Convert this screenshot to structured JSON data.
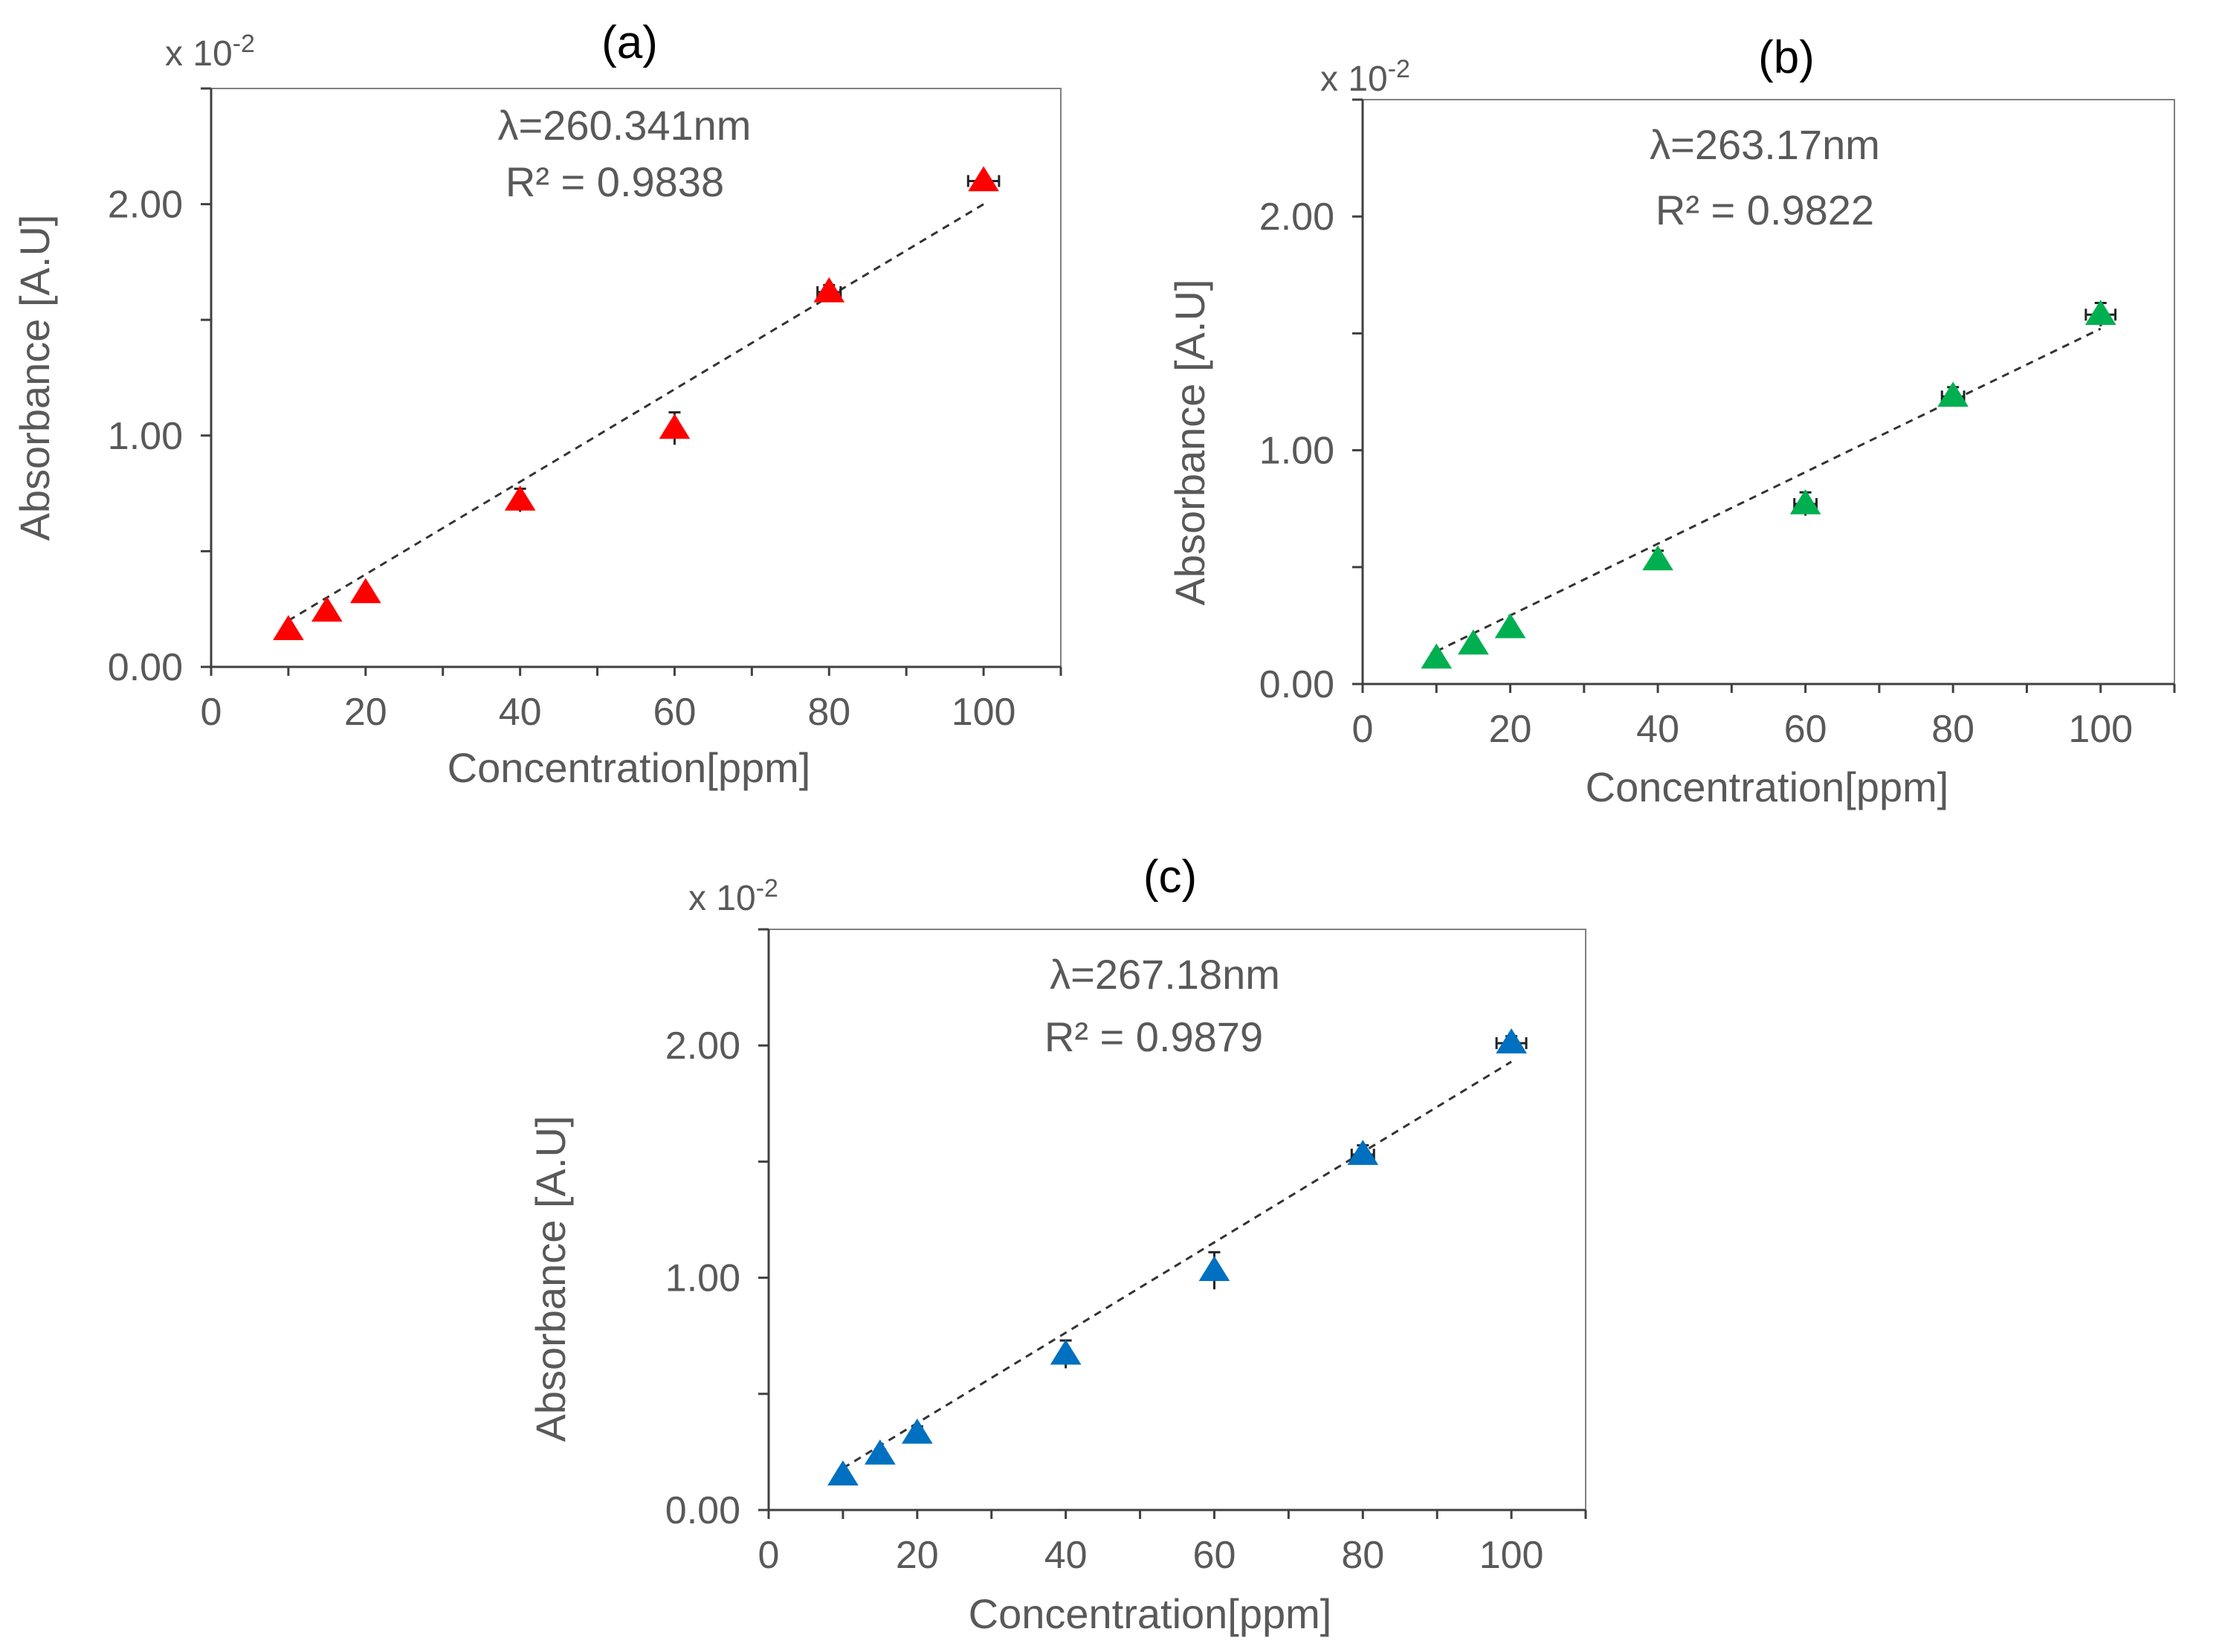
{
  "chart_data": [
    {
      "type": "scatter",
      "panel_label": "(a)",
      "multiplier_base": "x 10",
      "multiplier_exp": "-2",
      "annotation_lambda": "λ=260.341nm",
      "annotation_r2": "R² = 0.9838",
      "xlabel": "Concentration[ppm]",
      "ylabel": "Absorbance [A.U]",
      "xlim": [
        0,
        110
      ],
      "ylim": [
        0,
        2.5
      ],
      "xticks": [
        0,
        20,
        40,
        60,
        80,
        100
      ],
      "xtick_labels": [
        "0",
        "20",
        "40",
        "60",
        "80",
        "100"
      ],
      "yticks": [
        0,
        1,
        2
      ],
      "ytick_labels": [
        "0.00",
        "1.00",
        "2.00"
      ],
      "color": "#ff0000",
      "trendline": {
        "x": [
          10,
          100
        ],
        "y": [
          0.2,
          2.0
        ]
      },
      "series": [
        {
          "name": "Absorbance",
          "x": [
            10,
            15,
            20,
            40,
            60,
            80,
            100
          ],
          "y": [
            0.16,
            0.24,
            0.32,
            0.72,
            1.03,
            1.62,
            2.1
          ],
          "yerr": [
            0.02,
            0.02,
            0.02,
            0.05,
            0.07,
            0.03,
            0.02
          ],
          "xerr": [
            0,
            0,
            0,
            0,
            0,
            1.5,
            2
          ]
        }
      ]
    },
    {
      "type": "scatter",
      "panel_label": "(b)",
      "multiplier_base": "x 10",
      "multiplier_exp": "-2",
      "annotation_lambda": "λ=263.17nm",
      "annotation_r2": "R² = 0.9822",
      "xlabel": "Concentration[ppm]",
      "ylabel": "Absorbance [A.U]",
      "xlim": [
        0,
        110
      ],
      "ylim": [
        0,
        2.5
      ],
      "xticks": [
        0,
        20,
        40,
        60,
        80,
        100
      ],
      "xtick_labels": [
        "0",
        "20",
        "40",
        "60",
        "80",
        "100"
      ],
      "yticks": [
        0,
        1,
        2
      ],
      "ytick_labels": [
        "0.00",
        "1.00",
        "2.00"
      ],
      "color": "#00b050",
      "trendline": {
        "x": [
          10,
          100
        ],
        "y": [
          0.14,
          1.52
        ]
      },
      "series": [
        {
          "name": "Absorbance",
          "x": [
            10,
            15,
            20,
            40,
            60,
            80,
            100
          ],
          "y": [
            0.11,
            0.17,
            0.24,
            0.53,
            0.77,
            1.23,
            1.58
          ],
          "yerr": [
            0.02,
            0.02,
            0.02,
            0.04,
            0.05,
            0.04,
            0.05
          ],
          "xerr": [
            0,
            0,
            0,
            0,
            1.5,
            1.5,
            2
          ]
        }
      ]
    },
    {
      "type": "scatter",
      "panel_label": "(c)",
      "multiplier_base": "x 10",
      "multiplier_exp": "-2",
      "annotation_lambda": "λ=267.18nm",
      "annotation_r2": "R² = 0.9879",
      "xlabel": "Concentration[ppm]",
      "ylabel": "Absorbance [A.U]",
      "xlim": [
        0,
        110
      ],
      "ylim": [
        0,
        2.5
      ],
      "xticks": [
        0,
        20,
        40,
        60,
        80,
        100
      ],
      "xtick_labels": [
        "0",
        "20",
        "40",
        "60",
        "80",
        "100"
      ],
      "yticks": [
        0,
        1,
        2
      ],
      "ytick_labels": [
        "0.00",
        "1.00",
        "2.00"
      ],
      "color": "#0070c0",
      "trendline": {
        "x": [
          10,
          100
        ],
        "y": [
          0.18,
          1.93
        ]
      },
      "series": [
        {
          "name": "Absorbance",
          "x": [
            10,
            15,
            20,
            40,
            60,
            80,
            100
          ],
          "y": [
            0.15,
            0.24,
            0.33,
            0.67,
            1.03,
            1.53,
            2.01
          ],
          "yerr": [
            0.02,
            0.02,
            0.03,
            0.06,
            0.08,
            0.04,
            0.03
          ],
          "xerr": [
            0,
            0,
            0,
            0,
            0,
            1.5,
            2
          ]
        }
      ]
    }
  ]
}
